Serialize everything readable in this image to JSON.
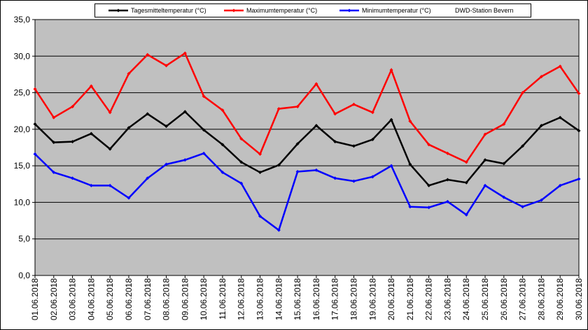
{
  "chart_data": {
    "type": "line",
    "annotation": "DWD-Station Bevern",
    "categories": [
      "01.06.2018",
      "02.06.2018",
      "03.06.2018",
      "04.06.2018",
      "05.06.2018",
      "06.06.2018",
      "07.06.2018",
      "08.06.2018",
      "09.06.2018",
      "10.06.2018",
      "11.06.2018",
      "12.06.2018",
      "13.06.2018",
      "14.06.2018",
      "15.06.2018",
      "16.06.2018",
      "17.06.2018",
      "18.06.2018",
      "19.06.2018",
      "20.06.2018",
      "21.06.2018",
      "22.06.2018",
      "23.06.2018",
      "24.06.2018",
      "25.06.2018",
      "26.06.2018",
      "27.06.2018",
      "28.06.2018",
      "29.06.2018",
      "30.06.2018"
    ],
    "series": [
      {
        "name": "Tagesmitteltemperatur (°C)",
        "color": "#000000",
        "values": [
          20.7,
          18.2,
          18.3,
          19.4,
          17.3,
          20.2,
          22.1,
          20.4,
          22.4,
          19.9,
          17.9,
          15.5,
          14.1,
          15.1,
          18.0,
          20.5,
          18.3,
          17.7,
          18.6,
          21.3,
          15.2,
          12.3,
          13.1,
          12.7,
          15.8,
          15.3,
          17.7,
          20.5,
          21.6,
          19.8
        ]
      },
      {
        "name": "Maximumtemperatur (°C)",
        "color": "#ff0000",
        "values": [
          25.5,
          21.6,
          23.1,
          25.9,
          22.3,
          27.6,
          30.2,
          28.7,
          30.4,
          24.5,
          22.6,
          18.7,
          16.6,
          22.8,
          23.1,
          26.2,
          22.1,
          23.4,
          22.3,
          28.1,
          21.1,
          17.9,
          16.7,
          15.5,
          19.3,
          20.7,
          25.0,
          27.2,
          28.6,
          24.9
        ]
      },
      {
        "name": "Minimumtemperatur (°C)",
        "color": "#0000ff",
        "values": [
          16.6,
          14.1,
          13.3,
          12.3,
          12.3,
          10.6,
          13.3,
          15.2,
          15.8,
          16.7,
          14.1,
          12.6,
          8.1,
          6.2,
          14.2,
          14.4,
          13.3,
          12.9,
          13.5,
          15.0,
          9.4,
          9.3,
          10.1,
          8.3,
          12.3,
          10.7,
          9.4,
          10.3,
          12.3,
          13.2
        ]
      }
    ],
    "ylim": [
      0,
      35
    ],
    "yticks": [
      {
        "value": 0,
        "label": "0,0"
      },
      {
        "value": 5,
        "label": "5,0"
      },
      {
        "value": 10,
        "label": "10,0"
      },
      {
        "value": 15,
        "label": "15,0"
      },
      {
        "value": 20,
        "label": "20,0"
      },
      {
        "value": 25,
        "label": "25,0"
      },
      {
        "value": 30,
        "label": "30,0"
      },
      {
        "value": 35,
        "label": "35,0"
      }
    ],
    "grid": true,
    "background": "#c0c0c0"
  }
}
